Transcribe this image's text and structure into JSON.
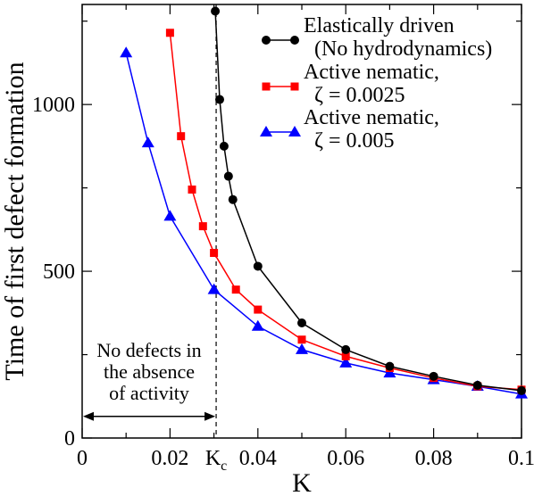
{
  "chart_data": {
    "type": "line",
    "title": "",
    "xlabel": "K",
    "ylabel": "Time of first defect formation",
    "xlim": [
      0,
      0.1
    ],
    "ylim": [
      0,
      1300
    ],
    "xticks": [
      {
        "value": 0,
        "label": "0"
      },
      {
        "value": 0.02,
        "label": "0.02"
      },
      {
        "value": 0.04,
        "label": "0.04"
      },
      {
        "value": 0.06,
        "label": "0.06"
      },
      {
        "value": 0.08,
        "label": "0.08"
      },
      {
        "value": 0.1,
        "label": "0.1"
      }
    ],
    "yticks": [
      {
        "value": 0,
        "label": "0"
      },
      {
        "value": 500,
        "label": "500"
      },
      {
        "value": 1000,
        "label": "1000"
      }
    ],
    "grid": false,
    "legend_position": "top-right",
    "series": [
      {
        "name_lines": [
          "Elastically driven",
          "(No hydrodynamics)"
        ],
        "color": "#000000",
        "marker": "circle",
        "x": [
          0.0303,
          0.0313,
          0.0323,
          0.0333,
          0.0343,
          0.04,
          0.05,
          0.06,
          0.07,
          0.08,
          0.09,
          0.1
        ],
        "y": [
          1280,
          1015,
          875,
          785,
          715,
          515,
          345,
          265,
          215,
          185,
          158,
          142
        ]
      },
      {
        "name_lines": [
          "Active nematic,",
          "ζ = 0.0025"
        ],
        "color": "#ff0000",
        "marker": "square",
        "x": [
          0.02,
          0.0225,
          0.025,
          0.0275,
          0.03,
          0.035,
          0.04,
          0.05,
          0.06,
          0.07,
          0.08,
          0.09,
          0.1
        ],
        "y": [
          1215,
          905,
          745,
          635,
          555,
          445,
          385,
          295,
          245,
          210,
          180,
          155,
          145
        ]
      },
      {
        "name_lines": [
          "Active nematic,",
          "ζ = 0.005"
        ],
        "color": "#0000ff",
        "marker": "triangle",
        "x": [
          0.01,
          0.015,
          0.02,
          0.03,
          0.04,
          0.05,
          0.06,
          0.07,
          0.08,
          0.09,
          0.1
        ],
        "y": [
          1155,
          885,
          665,
          445,
          335,
          265,
          225,
          195,
          175,
          155,
          132
        ]
      }
    ],
    "critical_line": {
      "x": 0.0305,
      "label_main": "K",
      "label_sub": "c"
    },
    "annotation": {
      "lines": [
        "No defects in",
        "the absence",
        "of activity"
      ],
      "arrow_x_from": 0,
      "arrow_x_to": 0.0305,
      "arrow_y": 65
    }
  }
}
